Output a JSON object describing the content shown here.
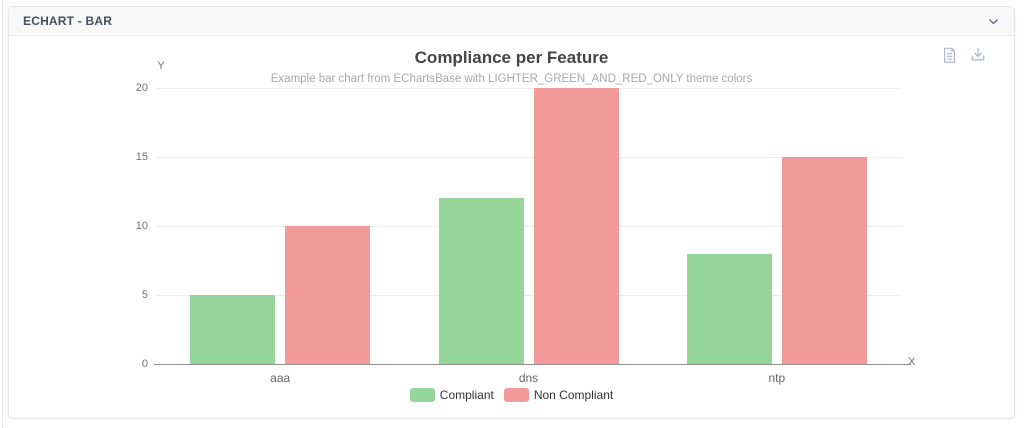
{
  "panel": {
    "title": "ECHART - BAR",
    "collapse_icon": "chevron-down"
  },
  "toolbox": {
    "items": [
      {
        "icon": "data-view-icon",
        "title": "Data View"
      },
      {
        "icon": "save-as-image-icon",
        "title": "Save As Image"
      }
    ],
    "icon_color": "#a7b4d2"
  },
  "chart_data": {
    "type": "bar",
    "title": "Compliance per Feature",
    "subtitle": "Example bar chart from EChartsBase with LIGHTER_GREEN_AND_RED_ONLY theme colors",
    "categories": [
      "aaa",
      "dns",
      "ntp"
    ],
    "series": [
      {
        "name": "Compliant",
        "color": "#96d69b",
        "values": [
          5,
          12,
          8
        ]
      },
      {
        "name": "Non Compliant",
        "color": "#f29a9a",
        "values": [
          10,
          20,
          15
        ]
      }
    ],
    "xlabel": "X",
    "ylabel": "Y",
    "ylim": [
      0,
      20
    ],
    "yticks": [
      0,
      5,
      10,
      15,
      20
    ],
    "grid": true,
    "legend_position": "bottom"
  },
  "colors": {
    "compliant_green": "#96d69b",
    "non_compliant_red": "#f29a9a",
    "grid_line": "#ededed",
    "axis_line": "#8f8f8f",
    "axis_text": "#6e7079",
    "title_text": "#454545",
    "subtitle_text": "#a8a8a8",
    "header_text": "#464e5f",
    "toolbox_icon": "#a7b4d2"
  }
}
